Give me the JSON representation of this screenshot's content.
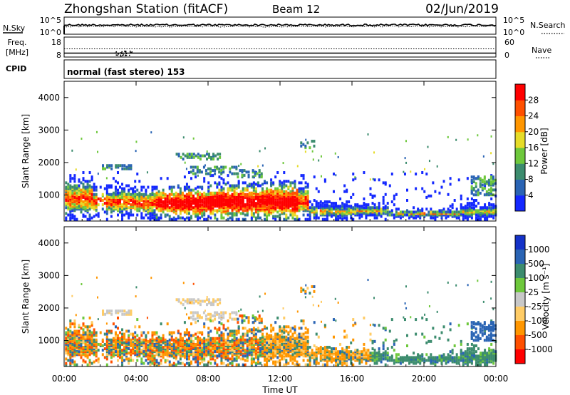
{
  "header": {
    "title": "Zhongshan Station (fitACF)",
    "beam": "Beam 12",
    "date": "02/Jun/2019"
  },
  "noise_panel": {
    "left_label": "N.Sky",
    "right_label": "N.Search",
    "left_ticks": [
      "10^5",
      "10^0"
    ],
    "right_ticks": [
      "10^5",
      "10^0"
    ]
  },
  "freq_panel": {
    "left_label_line1": "Freq.",
    "left_label_line2": "[MHz]",
    "right_label": "Nave",
    "left_ticks": [
      "18",
      "8"
    ],
    "right_ticks": [
      "60",
      "0"
    ]
  },
  "cpid_panel": {
    "label": "CPID",
    "text": "normal (fast stereo) 153"
  },
  "x_axis": {
    "label": "Time UT",
    "ticks": [
      "00:00",
      "04:00",
      "08:00",
      "12:00",
      "16:00",
      "20:00",
      "00:00"
    ]
  },
  "chart_data": [
    {
      "type": "heatmap",
      "name": "power",
      "ylabel": "Slant Range [km]",
      "yticks": [
        "1000",
        "2000",
        "3000",
        "4000"
      ],
      "ylim": [
        200,
        4500
      ],
      "colorbar_label": "Power [dB]",
      "colorbar_ticks": [
        "4",
        "8",
        "12",
        "16",
        "20",
        "24",
        "28"
      ],
      "colors": [
        "#1428ff",
        "#2a64b4",
        "#3c8c6e",
        "#6ec83c",
        "#e6dc28",
        "#ff9600",
        "#ff5000",
        "#ff0000"
      ],
      "xlim_hours": [
        0,
        24
      ]
    },
    {
      "type": "heatmap",
      "name": "velocity",
      "ylabel": "Slant Range [km]",
      "yticks": [
        "1000",
        "2000",
        "3000",
        "4000"
      ],
      "ylim": [
        200,
        4500
      ],
      "colorbar_label": "Velocity [m s⁻¹]",
      "colorbar_ticks": [
        "1000",
        "500",
        "100",
        "25",
        "-25",
        "-100",
        "-500",
        "-1000"
      ],
      "colors": [
        "#1432c8",
        "#2a64b4",
        "#3c8c6e",
        "#6ec83c",
        "#c8c8c8",
        "#ffcc66",
        "#ff9600",
        "#ff5000",
        "#ff0000"
      ],
      "xlim_hours": [
        0,
        24
      ]
    }
  ]
}
